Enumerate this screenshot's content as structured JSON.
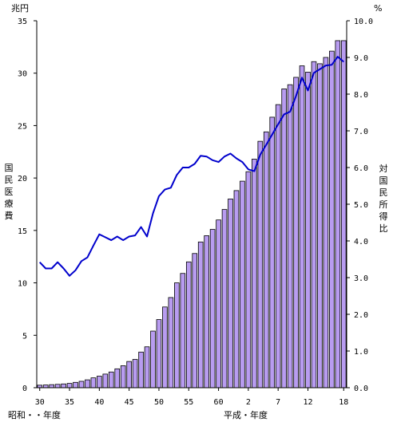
{
  "chart_data": {
    "type": "bar",
    "left_unit": "兆円",
    "right_unit": "%",
    "left_axis_label_chars": [
      "国",
      "民",
      "医",
      "療",
      "費"
    ],
    "right_axis_label_chars": [
      "対",
      "国",
      "民",
      "所",
      "得",
      "比"
    ],
    "left_ylim": [
      0,
      35
    ],
    "right_ylim": [
      0,
      10
    ],
    "left_ticks": [
      "35",
      "30",
      "25",
      "20",
      "15",
      "10",
      "5",
      "0"
    ],
    "right_ticks": [
      "10.0",
      "9.0",
      "8.0",
      "7.0",
      "6.0",
      "5.0",
      "4.0",
      "3.0",
      "2.0",
      "1.0",
      "0.0"
    ],
    "x_tick_labels": [
      {
        "i": 0,
        "label": "30"
      },
      {
        "i": 5,
        "label": "35"
      },
      {
        "i": 10,
        "label": "40"
      },
      {
        "i": 15,
        "label": "45"
      },
      {
        "i": 20,
        "label": "50"
      },
      {
        "i": 25,
        "label": "55"
      },
      {
        "i": 30,
        "label": "60"
      },
      {
        "i": 35,
        "label": "2"
      },
      {
        "i": 40,
        "label": "7"
      },
      {
        "i": 45,
        "label": "12"
      },
      {
        "i": 51,
        "label": "18"
      }
    ],
    "era_showa": "昭和・・年度",
    "era_heisei": "平成・年度",
    "years": [
      "S30",
      "S31",
      "S32",
      "S33",
      "S34",
      "S35",
      "S36",
      "S37",
      "S38",
      "S39",
      "S40",
      "S41",
      "S42",
      "S43",
      "S44",
      "S45",
      "S46",
      "S47",
      "S48",
      "S49",
      "S50",
      "S51",
      "S52",
      "S53",
      "S54",
      "S55",
      "S56",
      "S57",
      "S58",
      "S59",
      "S60",
      "S61",
      "S62",
      "S63",
      "H1",
      "H2",
      "H3",
      "H4",
      "H5",
      "H6",
      "H7",
      "H8",
      "H9",
      "H10",
      "H11",
      "H12",
      "H13",
      "H14",
      "H15",
      "H16",
      "H17",
      "H18"
    ],
    "series": [
      {
        "type": "bar",
        "axis": "left",
        "values": [
          0.24,
          0.26,
          0.29,
          0.32,
          0.36,
          0.41,
          0.51,
          0.61,
          0.75,
          0.94,
          1.1,
          1.3,
          1.5,
          1.8,
          2.1,
          2.5,
          2.7,
          3.4,
          3.9,
          5.4,
          6.5,
          7.7,
          8.6,
          10.0,
          10.9,
          12.0,
          12.8,
          13.9,
          14.5,
          15.1,
          16.0,
          17.0,
          18.0,
          18.8,
          19.7,
          20.6,
          21.8,
          23.5,
          24.4,
          25.8,
          27.0,
          28.5,
          28.9,
          29.6,
          30.7,
          30.1,
          31.1,
          30.9,
          31.5,
          32.1,
          33.1,
          33.1
        ]
      },
      {
        "type": "line",
        "axis": "right",
        "values": [
          3.42,
          3.25,
          3.25,
          3.42,
          3.25,
          3.05,
          3.2,
          3.45,
          3.55,
          3.87,
          4.18,
          4.1,
          4.02,
          4.12,
          4.02,
          4.12,
          4.15,
          4.38,
          4.12,
          4.75,
          5.22,
          5.4,
          5.45,
          5.8,
          6.0,
          6.0,
          6.1,
          6.32,
          6.3,
          6.2,
          6.15,
          6.3,
          6.38,
          6.25,
          6.15,
          5.95,
          5.9,
          6.35,
          6.62,
          6.9,
          7.18,
          7.45,
          7.52,
          7.95,
          8.45,
          8.1,
          8.58,
          8.68,
          8.78,
          8.8,
          9.02,
          8.88
        ]
      }
    ]
  }
}
